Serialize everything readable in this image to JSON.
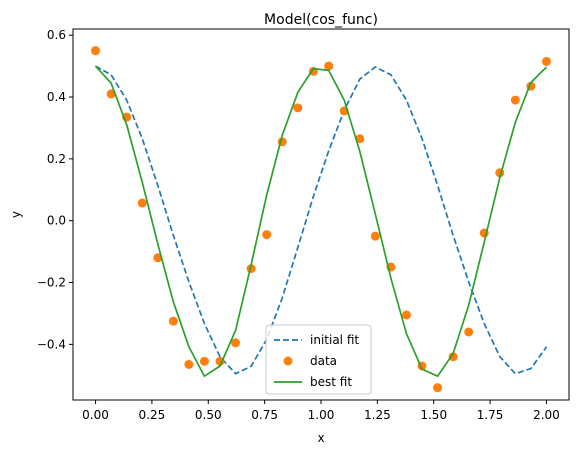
{
  "chart_data": {
    "type": "line",
    "title": "Model(cos_func)",
    "xlabel": "x",
    "ylabel": "y",
    "xlim": [
      -0.1,
      2.1
    ],
    "ylim": [
      -0.58,
      0.62
    ],
    "xticks": [
      "0.00",
      "0.25",
      "0.50",
      "0.75",
      "1.00",
      "1.25",
      "1.50",
      "1.75",
      "2.00"
    ],
    "yticks": [
      "−0.4",
      "−0.2",
      "0.0",
      "0.2",
      "0.4",
      "0.6"
    ],
    "grid": false,
    "legend_position": "lower-center",
    "x": [
      0.0,
      0.069,
      0.138,
      0.207,
      0.276,
      0.345,
      0.414,
      0.483,
      0.552,
      0.621,
      0.69,
      0.759,
      0.828,
      0.897,
      0.966,
      1.034,
      1.103,
      1.172,
      1.241,
      1.31,
      1.379,
      1.448,
      1.517,
      1.586,
      1.655,
      1.724,
      1.793,
      1.862,
      1.931,
      2.0
    ],
    "series": [
      {
        "name": "initial fit",
        "style": "dashed",
        "color": "#1f77b4",
        "values": [
          0.5,
          0.472,
          0.39,
          0.266,
          0.114,
          -0.047,
          -0.198,
          -0.333,
          -0.44,
          -0.495,
          -0.471,
          -0.384,
          -0.25,
          -0.087,
          0.078,
          0.226,
          0.357,
          0.458,
          0.497,
          0.472,
          0.39,
          0.266,
          0.114,
          -0.047,
          -0.198,
          -0.333,
          -0.44,
          -0.495,
          -0.478,
          -0.408
        ]
      },
      {
        "name": "data",
        "style": "markers",
        "color": "#ff7f0e",
        "values": [
          0.55,
          0.41,
          0.335,
          0.057,
          -0.12,
          -0.325,
          -0.465,
          -0.455,
          -0.455,
          -0.395,
          -0.155,
          -0.045,
          0.255,
          0.365,
          0.483,
          0.5,
          0.355,
          0.265,
          -0.05,
          -0.15,
          -0.305,
          -0.47,
          -0.54,
          -0.44,
          -0.36,
          -0.04,
          0.155,
          0.39,
          0.435,
          0.515
        ]
      },
      {
        "name": "best fit",
        "style": "solid",
        "color": "#2ca02c",
        "values": [
          0.5,
          0.445,
          0.31,
          0.125,
          -0.075,
          -0.262,
          -0.408,
          -0.503,
          -0.47,
          -0.355,
          -0.143,
          0.083,
          0.276,
          0.415,
          0.492,
          0.486,
          0.39,
          0.224,
          0.022,
          -0.186,
          -0.365,
          -0.48,
          -0.503,
          -0.43,
          -0.273,
          -0.07,
          0.139,
          0.318,
          0.447,
          0.497
        ]
      }
    ]
  }
}
